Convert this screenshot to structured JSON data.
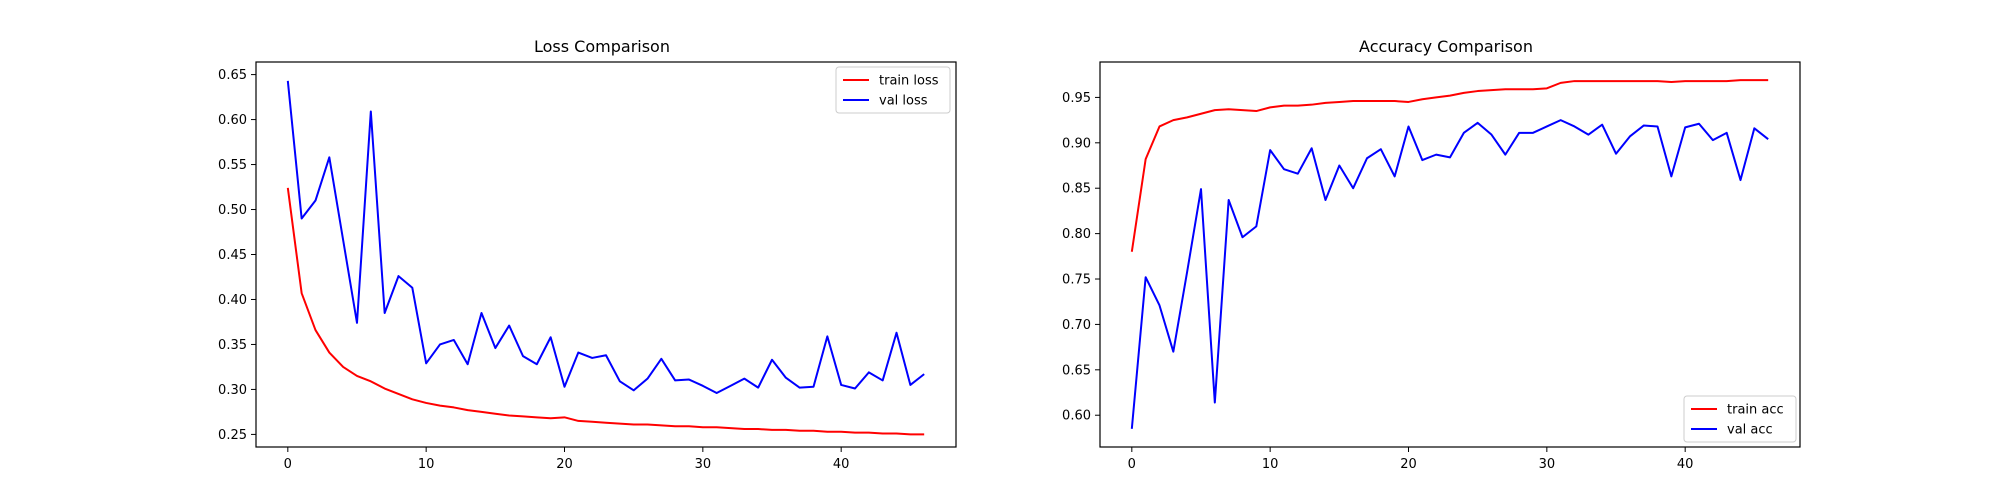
{
  "chart_data": [
    {
      "type": "line",
      "title": "Loss Comparison",
      "xlabel": "",
      "ylabel": "",
      "xlim": [
        -2.3,
        48.3
      ],
      "ylim": [
        0.236,
        0.664
      ],
      "xticks": [
        0,
        10,
        20,
        30,
        40
      ],
      "xtick_labels": [
        "0",
        "10",
        "20",
        "30",
        "40"
      ],
      "yticks": [
        0.25,
        0.3,
        0.35,
        0.4,
        0.45,
        0.5,
        0.55,
        0.6,
        0.65
      ],
      "ytick_labels": [
        "0.25",
        "0.30",
        "0.35",
        "0.40",
        "0.45",
        "0.50",
        "0.55",
        "0.60",
        "0.65"
      ],
      "grid": false,
      "legend_position": "top-right",
      "series": [
        {
          "name": "train loss",
          "color": "#ff0000",
          "values": [
            0.524,
            0.407,
            0.366,
            0.341,
            0.325,
            0.315,
            0.309,
            0.301,
            0.295,
            0.289,
            0.285,
            0.282,
            0.28,
            0.277,
            0.275,
            0.273,
            0.271,
            0.27,
            0.269,
            0.268,
            0.269,
            0.265,
            0.264,
            0.263,
            0.262,
            0.261,
            0.261,
            0.26,
            0.259,
            0.259,
            0.258,
            0.258,
            0.257,
            0.256,
            0.256,
            0.255,
            0.255,
            0.254,
            0.254,
            0.253,
            0.253,
            0.252,
            0.252,
            0.251,
            0.251,
            0.25,
            0.25
          ]
        },
        {
          "name": "val loss",
          "color": "#0000ff",
          "values": [
            0.643,
            0.49,
            0.51,
            0.558,
            0.466,
            0.374,
            0.609,
            0.385,
            0.426,
            0.413,
            0.329,
            0.35,
            0.355,
            0.328,
            0.385,
            0.346,
            0.371,
            0.337,
            0.328,
            0.358,
            0.303,
            0.341,
            0.335,
            0.338,
            0.309,
            0.299,
            0.312,
            0.334,
            0.31,
            0.311,
            0.304,
            0.296,
            0.304,
            0.312,
            0.302,
            0.333,
            0.313,
            0.302,
            0.303,
            0.359,
            0.305,
            0.301,
            0.319,
            0.31,
            0.363,
            0.305,
            0.317
          ]
        }
      ]
    },
    {
      "type": "line",
      "title": "Accuracy Comparison",
      "xlabel": "",
      "ylabel": "",
      "xlim": [
        -2.3,
        48.3
      ],
      "ylim": [
        0.565,
        0.989
      ],
      "xticks": [
        0,
        10,
        20,
        30,
        40
      ],
      "xtick_labels": [
        "0",
        "10",
        "20",
        "30",
        "40"
      ],
      "yticks": [
        0.6,
        0.65,
        0.7,
        0.75,
        0.8,
        0.85,
        0.9,
        0.95
      ],
      "ytick_labels": [
        "0.60",
        "0.65",
        "0.70",
        "0.75",
        "0.80",
        "0.85",
        "0.90",
        "0.95"
      ],
      "grid": false,
      "legend_position": "bottom-right",
      "series": [
        {
          "name": "train acc",
          "color": "#ff0000",
          "values": [
            0.78,
            0.882,
            0.918,
            0.925,
            0.928,
            0.932,
            0.936,
            0.937,
            0.936,
            0.935,
            0.939,
            0.941,
            0.941,
            0.942,
            0.944,
            0.945,
            0.946,
            0.946,
            0.946,
            0.946,
            0.945,
            0.948,
            0.95,
            0.952,
            0.955,
            0.957,
            0.958,
            0.959,
            0.959,
            0.959,
            0.96,
            0.966,
            0.968,
            0.968,
            0.968,
            0.968,
            0.968,
            0.968,
            0.968,
            0.967,
            0.968,
            0.968,
            0.968,
            0.968,
            0.969,
            0.969,
            0.969
          ]
        },
        {
          "name": "val acc",
          "color": "#0000ff",
          "values": [
            0.585,
            0.752,
            0.721,
            0.67,
            0.758,
            0.849,
            0.614,
            0.837,
            0.796,
            0.808,
            0.892,
            0.871,
            0.866,
            0.894,
            0.837,
            0.875,
            0.85,
            0.883,
            0.893,
            0.863,
            0.918,
            0.881,
            0.887,
            0.884,
            0.911,
            0.922,
            0.909,
            0.887,
            0.911,
            0.911,
            0.918,
            0.925,
            0.918,
            0.909,
            0.92,
            0.888,
            0.907,
            0.919,
            0.918,
            0.863,
            0.917,
            0.921,
            0.903,
            0.911,
            0.859,
            0.916,
            0.904
          ]
        }
      ]
    }
  ]
}
